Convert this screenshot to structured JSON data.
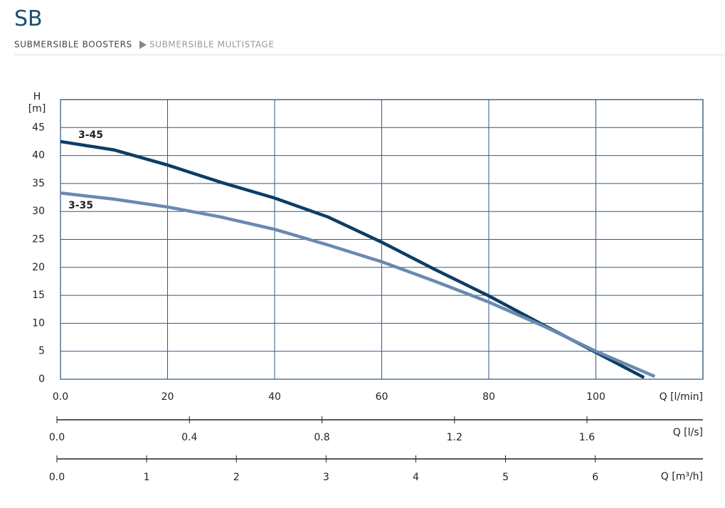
{
  "header": {
    "title": "SB",
    "breadcrumb": [
      "SUBMERSIBLE BOOSTERS",
      "SUBMERSIBLE MULTISTAGE"
    ]
  },
  "chart_data": {
    "type": "line",
    "ylabel": "H",
    "yunit": "[m]",
    "xlabel": "Q [l/min]",
    "xlim": [
      0,
      120
    ],
    "xticks": [
      {
        "value": 0,
        "label": "0.0"
      },
      20,
      40,
      60,
      80,
      100
    ],
    "ylim": [
      0,
      50
    ],
    "yticks": [
      0,
      5,
      10,
      15,
      20,
      25,
      30,
      35,
      40,
      45
    ],
    "grid": true,
    "series": [
      {
        "name": "3-45",
        "color": "#0d3d66",
        "x": [
          0,
          10,
          20,
          30,
          40,
          50,
          60,
          70,
          80,
          90,
          100,
          109
        ],
        "values": [
          42.5,
          41,
          38.3,
          35.2,
          32.4,
          29,
          24.5,
          19.6,
          14.9,
          9.8,
          4.8,
          0.3
        ]
      },
      {
        "name": "3-35",
        "color": "#6b89b0",
        "x": [
          0,
          10,
          20,
          30,
          40,
          50,
          60,
          70,
          80,
          90,
          100,
          111
        ],
        "values": [
          33.3,
          32.2,
          30.8,
          29,
          26.8,
          24,
          21,
          17.5,
          13.8,
          9.6,
          5,
          0.5
        ]
      }
    ],
    "secondary_x_axes": [
      {
        "label": "Q [l/s]",
        "xlim": [
          0,
          1.95
        ],
        "xticks": [
          {
            "value": 0,
            "label": "0.0"
          },
          0.4,
          0.8,
          1.2,
          1.6
        ]
      },
      {
        "label": "Q [m³/h]",
        "xlim": [
          0,
          7.2
        ],
        "xticks": [
          {
            "value": 0,
            "label": "0.0"
          },
          1,
          2,
          3,
          4,
          5,
          6
        ]
      }
    ]
  }
}
